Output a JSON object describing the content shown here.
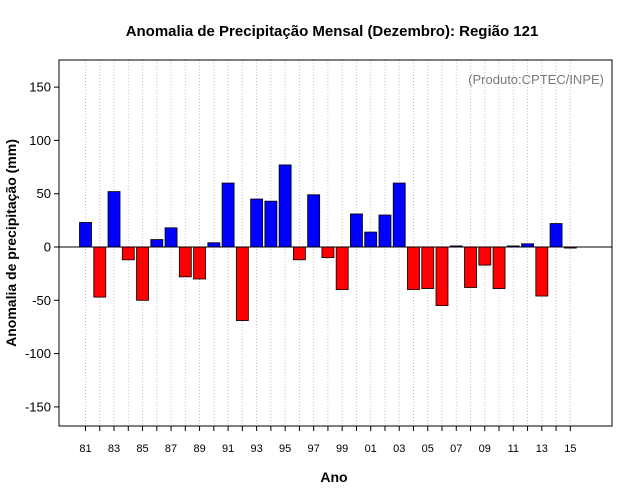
{
  "chart_data": {
    "type": "bar",
    "title": "Anomalia de Precipitação Mensal (Dezembro): Região 121",
    "credit": "(Produto:CPTEC/INPE)",
    "xlabel": "Ano",
    "ylabel": "Anomalia de precipitação (mm)",
    "ylim": [
      -170,
      177
    ],
    "yticks": [
      -150,
      -100,
      -50,
      0,
      50,
      100,
      150
    ],
    "x_tick_labels": [
      "81",
      "83",
      "85",
      "87",
      "89",
      "91",
      "93",
      "95",
      "97",
      "99",
      "01",
      "03",
      "05",
      "07",
      "09",
      "11",
      "13",
      "15"
    ],
    "categories": [
      "1981",
      "1982",
      "1983",
      "1984",
      "1985",
      "1986",
      "1987",
      "1988",
      "1989",
      "1990",
      "1991",
      "1992",
      "1993",
      "1994",
      "1995",
      "1996",
      "1997",
      "1998",
      "1999",
      "2000",
      "2001",
      "2002",
      "2003",
      "2004",
      "2005",
      "2006",
      "2007",
      "2008",
      "2009",
      "2010",
      "2011",
      "2012",
      "2013",
      "2014",
      "2015"
    ],
    "values": [
      23,
      -47,
      52,
      -12,
      -50,
      7,
      18,
      -28,
      -30,
      4,
      60,
      -69,
      45,
      43,
      77,
      -12,
      49,
      -10,
      -40,
      31,
      14,
      30,
      60,
      -40,
      -39,
      -55,
      1,
      -38,
      -17,
      -39,
      1,
      3,
      -46,
      22,
      -1
    ],
    "colors": {
      "positive": "#0000ff",
      "negative": "#ff0000",
      "edge": "#000000",
      "grid": "#b5b5b5",
      "zero_line": "#000000"
    },
    "grid": "vertical dotted"
  }
}
